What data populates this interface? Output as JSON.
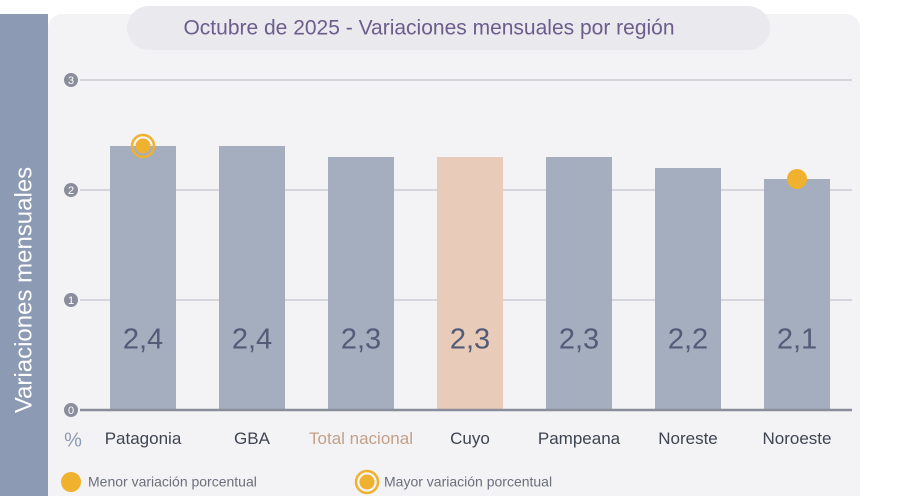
{
  "chart_data": {
    "type": "bar",
    "title": "Octubre de 2025 - Variaciones mensuales por región",
    "y_label": "Variaciones mensuales",
    "y_unit": "%",
    "categories": [
      "Patagonia",
      "GBA",
      "Total nacional",
      "Cuyo",
      "Pampeana",
      "Noreste",
      "Noroeste"
    ],
    "category_colors": [
      "#3f4452",
      "#3f4452",
      "#c4a088",
      "#3f4452",
      "#3f4452",
      "#3f4452",
      "#3f4452"
    ],
    "values": [
      2.4,
      2.4,
      2.3,
      2.3,
      2.3,
      2.2,
      2.1
    ],
    "value_labels": [
      "2,4",
      "2,4",
      "2,3",
      "2,3",
      "2,3",
      "2,2",
      "2,1"
    ],
    "colors": [
      "#a4aebe",
      "#a4aebe",
      "#a4aebe",
      "#e8cbb8",
      "#a4aebe",
      "#a4aebe",
      "#a4aebe"
    ],
    "ylim": [
      0,
      3
    ],
    "yticks": [
      0,
      1,
      2,
      3
    ],
    "grid": true,
    "markers": [
      {
        "name": "Menor variación porcentual",
        "category": "Noroeste",
        "style": "dot",
        "color": "#f0b12e"
      },
      {
        "name": "Mayor variación porcentual",
        "category": "Patagonia",
        "style": "ring",
        "color": "#f0b12e"
      }
    ]
  }
}
